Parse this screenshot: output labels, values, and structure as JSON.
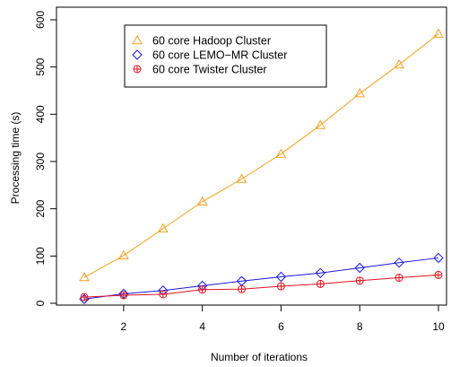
{
  "chart_data": {
    "type": "line",
    "xlabel": "Number of iterations",
    "ylabel": "Processing time (s)",
    "xlim": [
      1,
      10
    ],
    "ylim": [
      0,
      600
    ],
    "x_ticks": [
      2,
      4,
      6,
      8,
      10
    ],
    "y_ticks": [
      0,
      100,
      200,
      300,
      400,
      500,
      600
    ],
    "grid": false,
    "legend_position": "top-left",
    "x": [
      1,
      2,
      3,
      4,
      5,
      6,
      7,
      8,
      9,
      10
    ],
    "series": [
      {
        "name": "60 core Hadoop Cluster",
        "color": "#f5a020",
        "marker": "triangle-open",
        "values": [
          55,
          101,
          158,
          215,
          263,
          316,
          377,
          444,
          505,
          570
        ]
      },
      {
        "name": "60 core LEMO−MR Cluster",
        "color": "#1a1adc",
        "marker": "diamond-open",
        "values": [
          9,
          20,
          27,
          37,
          47,
          56,
          64,
          75,
          86,
          96
        ]
      },
      {
        "name": "60 core Twister Cluster",
        "color": "#e0141e",
        "marker": "crossed-circle",
        "values": [
          13,
          17,
          19,
          29,
          30,
          36,
          41,
          48,
          54,
          60
        ]
      }
    ]
  }
}
